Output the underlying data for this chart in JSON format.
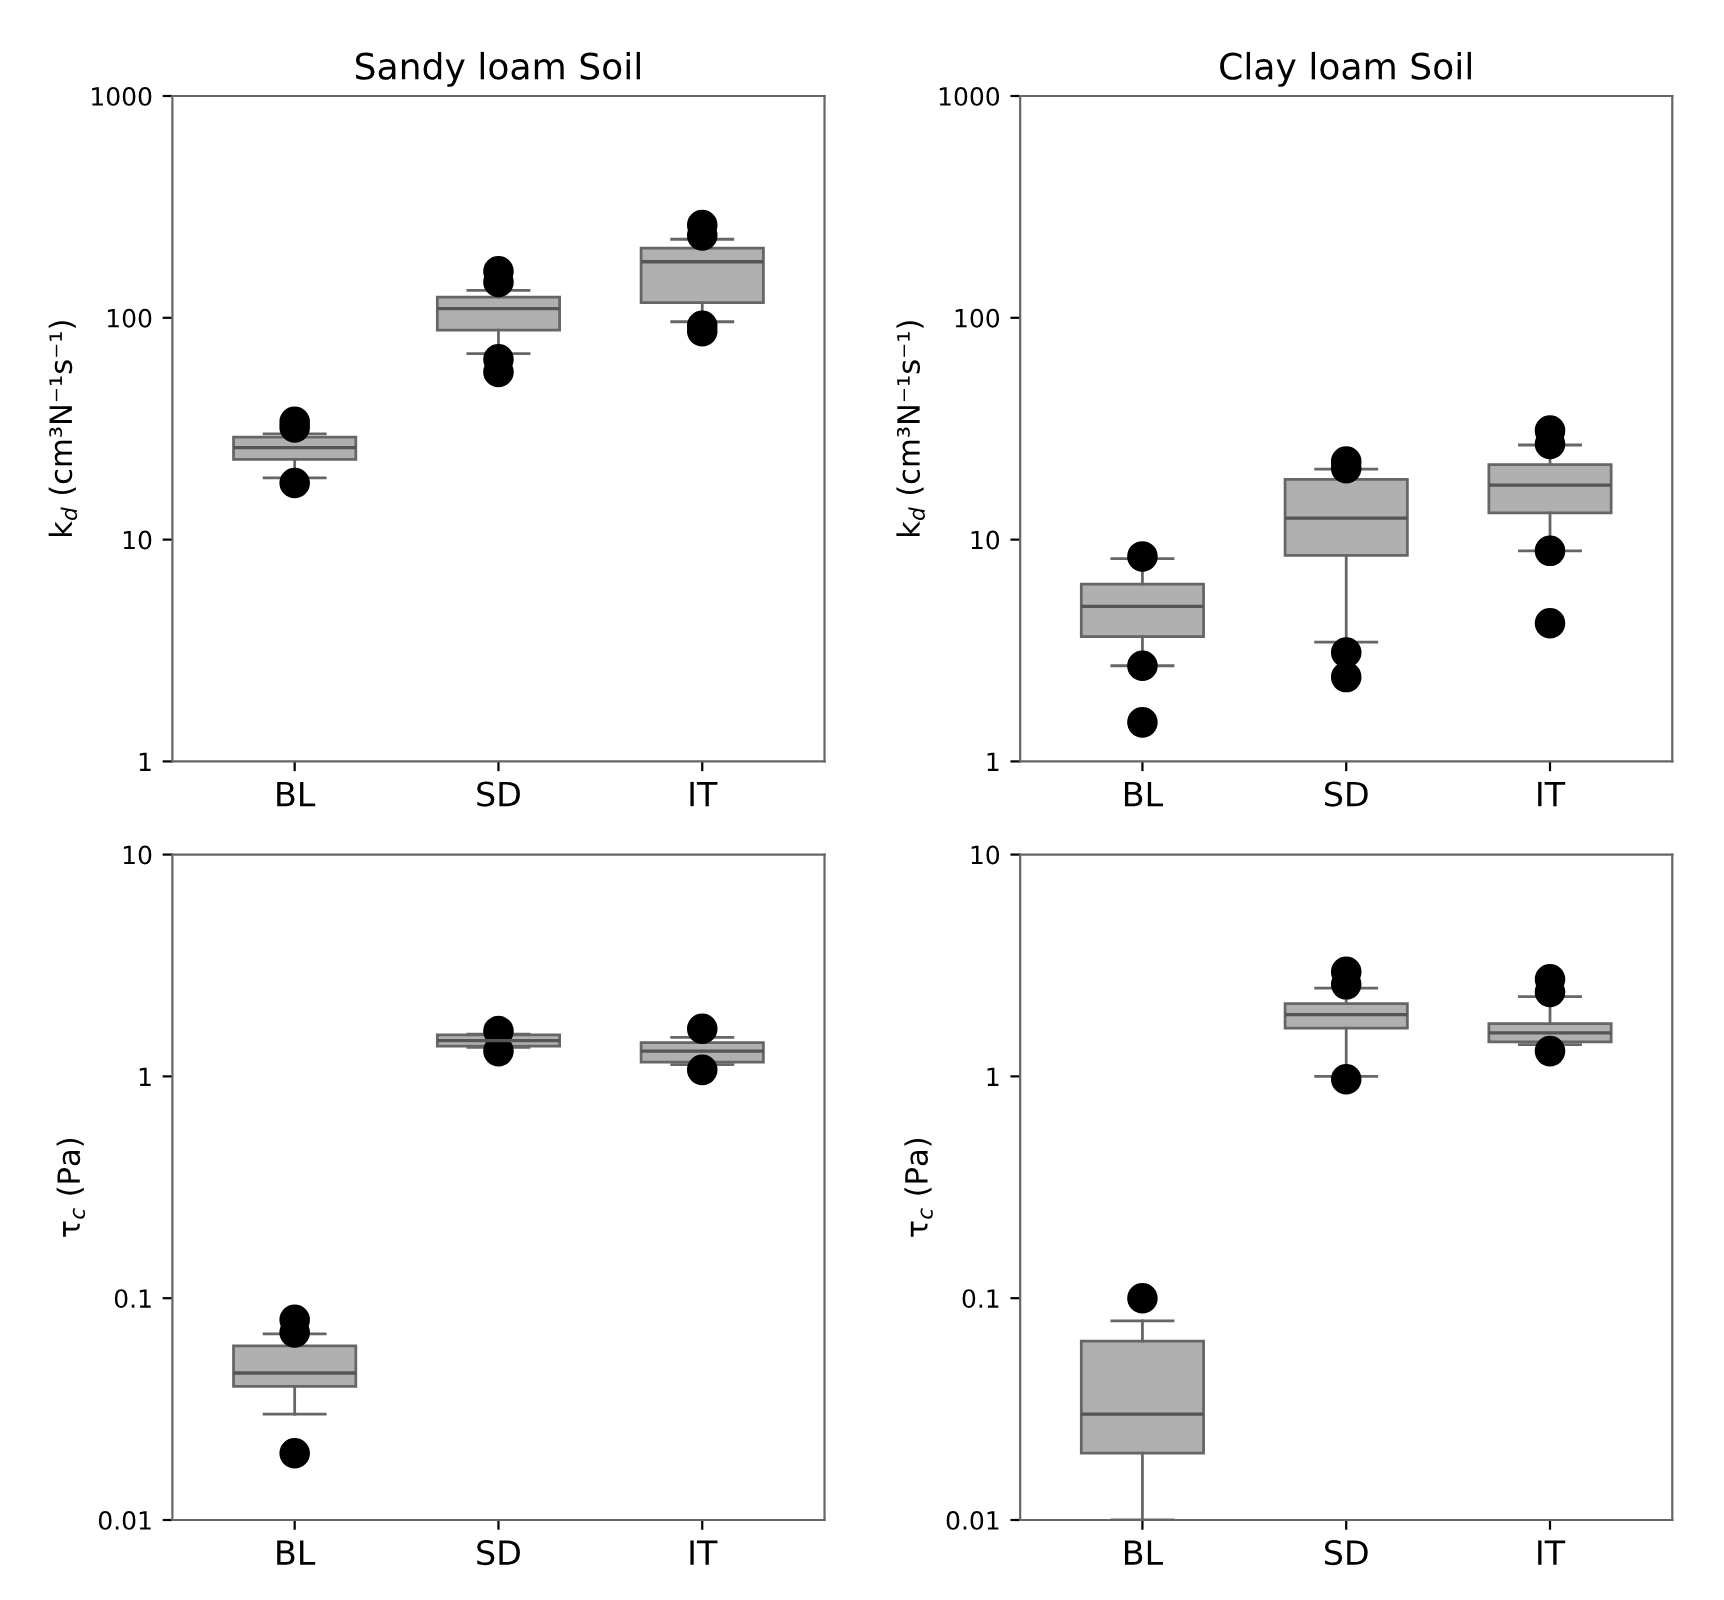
{
  "chart_data": [
    {
      "type": "box",
      "title": "Sandy loam Soil",
      "ylabel": "k$_{d}$ (cm³N⁻¹s⁻¹)",
      "categories": [
        "BL",
        "SD",
        "IT"
      ],
      "log": true,
      "ylim": [
        1,
        1000
      ],
      "yticks": [
        1,
        10,
        100,
        1000
      ],
      "color": "#b0b0b0",
      "boxes": [
        {
          "low": 19,
          "q1": 23,
          "median": 26,
          "q3": 29,
          "high": 30,
          "outliers": [
            34,
            32,
            18
          ]
        },
        {
          "low": 69,
          "q1": 88,
          "median": 110,
          "q3": 124,
          "high": 133,
          "outliers": [
            162,
            145,
            65,
            57
          ]
        },
        {
          "low": 96,
          "q1": 117,
          "median": 179,
          "q3": 206,
          "high": 226,
          "outliers": [
            262,
            235,
            92,
            87
          ]
        }
      ]
    },
    {
      "type": "box",
      "title": "Clay loam Soil",
      "ylabel": "k$_{d}$ (cm³N⁻¹s⁻¹)",
      "categories": [
        "BL",
        "SD",
        "IT"
      ],
      "log": true,
      "ylim": [
        1,
        1000
      ],
      "yticks": [
        1,
        10,
        100,
        1000
      ],
      "color": "#b0b0b0",
      "boxes": [
        {
          "low": 2.7,
          "q1": 3.65,
          "median": 5.0,
          "q3": 6.3,
          "high": 8.2,
          "outliers": [
            8.4,
            2.7,
            1.5
          ]
        },
        {
          "low": 3.45,
          "q1": 8.5,
          "median": 12.5,
          "q3": 18.7,
          "high": 20.8,
          "outliers": [
            22.5,
            21,
            3.1,
            2.4
          ]
        },
        {
          "low": 8.9,
          "q1": 13.2,
          "median": 17.6,
          "q3": 21.8,
          "high": 26.7,
          "outliers": [
            31,
            27,
            8.9,
            4.2
          ]
        }
      ]
    },
    {
      "type": "box",
      "ylabel": "τ$_{c}$ (Pa)",
      "categories": [
        "BL",
        "SD",
        "IT"
      ],
      "log": true,
      "ylim": [
        0.01,
        10
      ],
      "yticks": [
        0.01,
        0.1,
        1,
        10
      ],
      "color": "#b0b0b0",
      "boxes": [
        {
          "low": 0.03,
          "q1": 0.04,
          "median": 0.046,
          "q3": 0.061,
          "high": 0.069,
          "outliers": [
            0.08,
            0.07,
            0.02
          ]
        },
        {
          "low": 1.35,
          "q1": 1.37,
          "median": 1.45,
          "q3": 1.54,
          "high": 1.55,
          "outliers": [
            1.6,
            1.3
          ]
        },
        {
          "low": 1.13,
          "q1": 1.16,
          "median": 1.3,
          "q3": 1.42,
          "high": 1.5,
          "outliers": [
            1.64,
            1.07
          ]
        }
      ]
    },
    {
      "type": "box",
      "ylabel": "τ$_{c}$ (Pa)",
      "categories": [
        "BL",
        "SD",
        "IT"
      ],
      "log": true,
      "ylim": [
        0.01,
        10
      ],
      "yticks": [
        0.01,
        0.1,
        1,
        10
      ],
      "color": "#b0b0b0",
      "boxes": [
        {
          "low": 0.01,
          "q1": 0.02,
          "median": 0.03,
          "q3": 0.064,
          "high": 0.079,
          "outliers": [
            0.1
          ]
        },
        {
          "low": 1.0,
          "q1": 1.65,
          "median": 1.9,
          "q3": 2.13,
          "high": 2.5,
          "outliers": [
            2.96,
            2.6,
            0.97
          ]
        },
        {
          "low": 1.39,
          "q1": 1.43,
          "median": 1.57,
          "q3": 1.73,
          "high": 2.29,
          "outliers": [
            2.74,
            2.4,
            1.3
          ]
        }
      ]
    }
  ]
}
